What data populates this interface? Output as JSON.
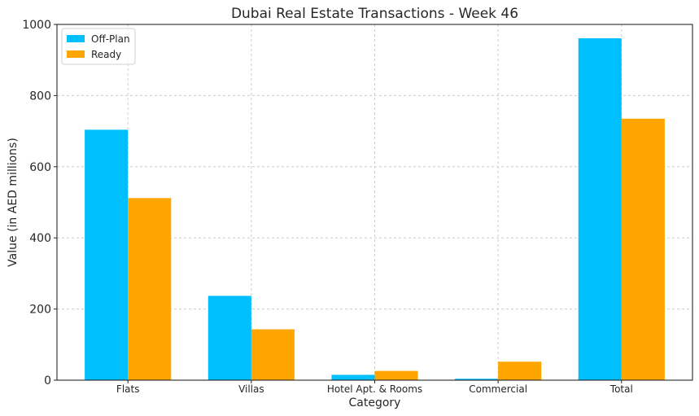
{
  "chart_data": {
    "type": "bar",
    "title": "Dubai Real Estate Transactions - Week 46",
    "xlabel": "Category",
    "ylabel": "Value (in AED millions)",
    "categories": [
      "Flats",
      "Villas",
      "Hotel Apt. & Rooms",
      "Commercial",
      "Total"
    ],
    "series": [
      {
        "name": "Off-Plan",
        "color": "#00BFFF",
        "values": [
          704,
          237,
          15,
          4,
          961
        ]
      },
      {
        "name": "Ready",
        "color": "#FFA500",
        "values": [
          512,
          143,
          26,
          52,
          735
        ]
      }
    ],
    "ylim": [
      0,
      1000
    ],
    "yticks": [
      0,
      200,
      400,
      600,
      800,
      1000
    ],
    "grid": true,
    "legend_position": "top-left"
  }
}
